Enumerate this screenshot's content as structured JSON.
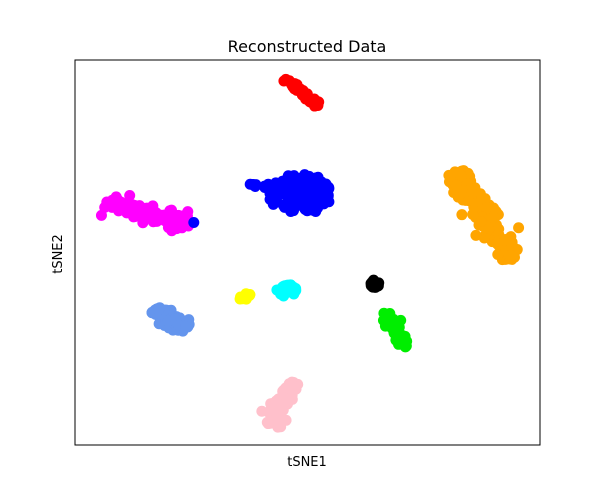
{
  "chart_data": {
    "type": "scatter",
    "title": "Reconstructed Data",
    "xlabel": "tSNE1",
    "ylabel": "tSNE2",
    "xlim": [
      0,
      100
    ],
    "ylim": [
      0,
      100
    ],
    "xticks": "none",
    "yticks": "none",
    "grid": false,
    "legend": "none",
    "clusters": [
      {
        "color": "#ff0000",
        "shape": "line",
        "from": [
          45.4,
          95.1
        ],
        "to": [
          52.4,
          88.3
        ],
        "spread": 1.0,
        "count": 45
      },
      {
        "color": "#0000ff",
        "shape": "blob",
        "center": [
          48.4,
          65.2
        ],
        "radius": [
          6.8,
          5.3
        ],
        "count": 140
      },
      {
        "color": "#0000ff",
        "shape": "blob",
        "center": [
          39.8,
          67.6
        ],
        "radius": [
          2.4,
          0.8
        ],
        "count": 10
      },
      {
        "color": "#ff00ff",
        "shape": "line",
        "from": [
          6.8,
          63.4
        ],
        "to": [
          24.5,
          57.1
        ],
        "spread": 2.5,
        "count": 110
      },
      {
        "color": "#0000ff",
        "shape": "point",
        "center": [
          25.8,
          57.4
        ],
        "radius": [
          0.5,
          0.5
        ],
        "count": 1
      },
      {
        "color": "#ffa500",
        "shape": "line",
        "from": [
          81.9,
          71.1
        ],
        "to": [
          94.6,
          47.9
        ],
        "spread": 2.8,
        "count": 170
      },
      {
        "color": "#ffff00",
        "shape": "line",
        "from": [
          35.5,
          37.7
        ],
        "to": [
          37.6,
          39.1
        ],
        "spread": 0.7,
        "count": 12
      },
      {
        "color": "#00ffff",
        "shape": "blob",
        "center": [
          45.6,
          40.1
        ],
        "radius": [
          2.2,
          1.6
        ],
        "count": 30
      },
      {
        "color": "#000000",
        "shape": "blob",
        "center": [
          64.5,
          41.9
        ],
        "radius": [
          1.0,
          1.1
        ],
        "count": 15
      },
      {
        "color": "#00ee00",
        "shape": "line",
        "from": [
          66.5,
          34.3
        ],
        "to": [
          71.2,
          25.5
        ],
        "spread": 1.5,
        "count": 45
      },
      {
        "color": "#6495ed",
        "shape": "line",
        "from": [
          17.0,
          35.1
        ],
        "to": [
          24.0,
          29.9
        ],
        "spread": 2.2,
        "count": 90
      },
      {
        "color": "#ffc0cb",
        "shape": "line",
        "from": [
          47.3,
          16.4
        ],
        "to": [
          41.8,
          5.4
        ],
        "spread": 2.3,
        "count": 90
      }
    ]
  }
}
